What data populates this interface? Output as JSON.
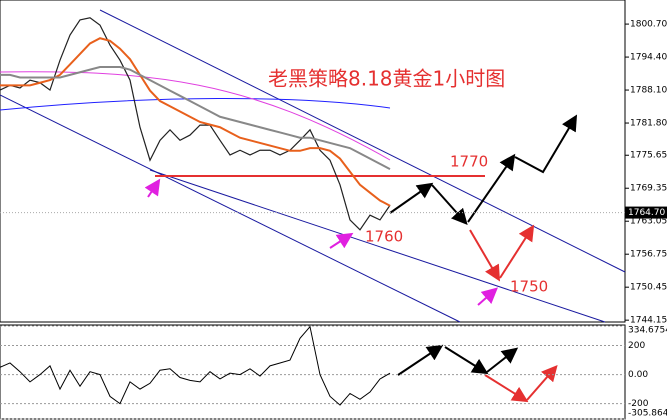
{
  "chart_data": {
    "type": "line",
    "title": "老黑策略8.18黄金1小时图",
    "annotations": [
      "1770",
      "1760",
      "1750"
    ],
    "ylim": [
      1743.8,
      1805.3
    ],
    "yticks": [
      {
        "value": 1800.7,
        "label": "1800.70"
      },
      {
        "value": 1794.4,
        "label": "1794.40"
      },
      {
        "value": 1788.1,
        "label": "1788.10"
      },
      {
        "value": 1781.8,
        "label": "1781.80"
      },
      1775.65,
      1769.35,
      1763.05,
      1756.75,
      1750.45,
      1744.15
    ],
    "last_price": {
      "value": 1764.7,
      "label": "1764.70"
    },
    "series": [
      {
        "color": "#222222",
        "values": [
          1788.1,
          1789.0,
          1788.5,
          1790.0,
          1789.5,
          1788.1,
          1793.8,
          1798.6,
          1801.5,
          1801.9,
          1800.5,
          1796.7,
          1793.8,
          1790.0,
          1781.0,
          1774.7,
          1778.5,
          1780.5,
          1778.5,
          1779.5,
          1781.4,
          1781.4,
          1778.5,
          1775.7,
          1776.6,
          1775.7,
          1776.6,
          1776.6,
          1775.7,
          1776.6,
          1778.5,
          1780.5,
          1776.6,
          1774.7,
          1770.0,
          1763.3,
          1761.4,
          1764.2,
          1763.3,
          1766.1
        ]
      },
      {
        "color": "#e8601c",
        "values": [
          1789,
          1789,
          1789,
          1789,
          1789.5,
          1790,
          1791,
          1793,
          1795,
          1797,
          1798,
          1797.5,
          1796,
          1794,
          1791,
          1788,
          1786,
          1785,
          1784,
          1783,
          1782,
          1781.5,
          1781,
          1780,
          1779,
          1778.5,
          1778,
          1777.5,
          1777,
          1776.5,
          1776.5,
          1777,
          1777,
          1776.5,
          1775,
          1772.5,
          1770,
          1768.5,
          1767,
          1766
        ]
      },
      {
        "color": "#888888",
        "values": [
          1791,
          1791,
          1790.5,
          1790.5,
          1790.5,
          1790.5,
          1790.5,
          1791,
          1791.5,
          1792,
          1792.5,
          1792.5,
          1792.5,
          1792,
          1791,
          1790,
          1789,
          1788,
          1787,
          1786,
          1785,
          1784,
          1783,
          1782.5,
          1782,
          1781.5,
          1781,
          1780.5,
          1780,
          1779.5,
          1779,
          1779,
          1778.5,
          1778,
          1777.5,
          1777,
          1776,
          1775,
          1774,
          1773
        ]
      }
    ],
    "indicator": {
      "ylim": [
        -305.864,
        334.6754
      ],
      "yticks": [
        334.6754,
        200,
        {
          "value": 0,
          "label": "0.00"
        },
        -200,
        -305.864
      ],
      "color": "#000000",
      "values": [
        50,
        80,
        20,
        -50,
        0,
        60,
        -100,
        30,
        -80,
        20,
        0,
        -150,
        -200,
        -50,
        -100,
        -60,
        30,
        40,
        -20,
        -40,
        -50,
        20,
        -30,
        10,
        0,
        40,
        -10,
        60,
        80,
        100,
        250,
        330,
        0,
        -150,
        -210,
        -130,
        -170,
        -120,
        -30,
        10
      ]
    }
  }
}
